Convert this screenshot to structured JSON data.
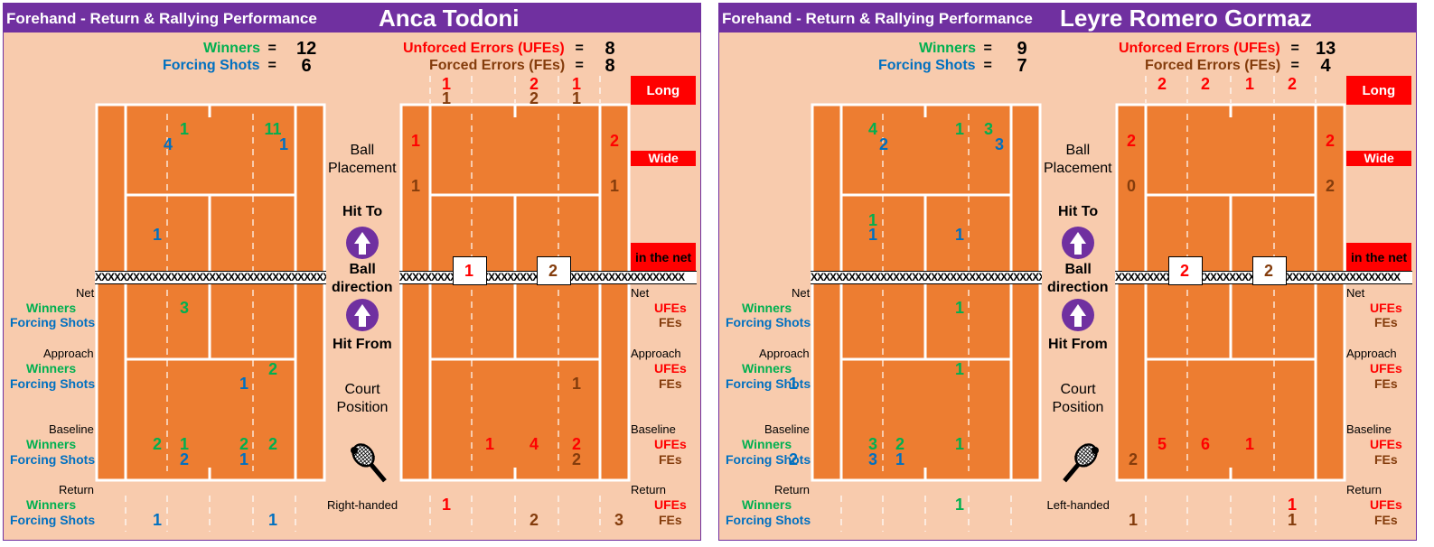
{
  "subtitle": "Forehand - Return & Rallying Performance",
  "labels": {
    "winners": "Winners",
    "forcing_shots": "Forcing Shots",
    "ufes_full": "Unforced Errors (UFEs)",
    "fes_full": "Forced Errors (FEs)",
    "equals": "=",
    "long": "Long",
    "wide": "Wide",
    "in_the_net": "in the net",
    "ball": "Ball",
    "placement": "Placement",
    "hit_to": "Hit To",
    "ball2": "Ball",
    "direction": "direction",
    "hit_from": "Hit From",
    "court": "Court",
    "position": "Position",
    "net": "Net",
    "approach": "Approach",
    "baseline": "Baseline",
    "return": "Return",
    "ufes": "UFEs",
    "fes": "FEs",
    "net_marks": "XXXXXXXXXXXXXXXXXXXXXXXXXXXXXXXXXXXXXXXXXXXXX"
  },
  "colors": {
    "court": "#ed7d31",
    "background": "#f8cbad",
    "header": "#7030a0",
    "winner": "#00b050",
    "forcing": "#0070c0",
    "ufe": "#ff0000",
    "fe": "#843c0c",
    "error_box": "#ff0000"
  },
  "chart_data": [
    {
      "type": "table",
      "player": "Anca Todoni",
      "handedness": "Right-handed",
      "racket_icon": "racket-right-icon",
      "totals": {
        "winners": "12",
        "forcing_shots": "6",
        "ufes": "8",
        "fes": "8"
      },
      "winners": {
        "placement": [
          {
            "col": 2,
            "row": "deep",
            "value": "1"
          },
          {
            "col": 4,
            "row": "deep",
            "value": "11"
          }
        ],
        "net": [
          {
            "col": 2,
            "value": "3"
          }
        ],
        "approach": [
          {
            "col": 4,
            "value": "2"
          }
        ],
        "baseline": [
          {
            "col": 1,
            "value": "2"
          },
          {
            "col": 2,
            "value": "1"
          },
          {
            "col": 3,
            "value": "2"
          },
          {
            "col": 4,
            "value": "2"
          }
        ],
        "return": []
      },
      "forcing_shots": {
        "placement": [
          {
            "col": 1,
            "row": "deep",
            "value": "4"
          },
          {
            "col": 4,
            "row": "deep",
            "value": "1"
          },
          {
            "col": 1,
            "row": "short",
            "value": "1"
          }
        ],
        "net": [],
        "approach": [
          {
            "col": 3,
            "value": "1"
          }
        ],
        "baseline": [
          {
            "col": 2,
            "value": "2"
          },
          {
            "col": 3,
            "value": "1"
          }
        ],
        "return": [
          {
            "col": 1,
            "value": "1"
          },
          {
            "col": 4,
            "value": "1"
          }
        ]
      },
      "ufes": {
        "long": [
          {
            "col": 1,
            "value": "1"
          },
          {
            "col": 3,
            "value": "2"
          },
          {
            "col": 4,
            "value": "1"
          }
        ],
        "wide_left": "1",
        "wide_right": "2",
        "net": [
          {
            "slot": 1,
            "value": "1"
          }
        ],
        "hit_from_approach": [],
        "hit_from_baseline": [
          {
            "col": 2,
            "value": "1"
          },
          {
            "col": 3,
            "value": "4"
          },
          {
            "col": 4,
            "value": "2"
          }
        ],
        "hit_from_return": [
          {
            "col": 1,
            "value": "1"
          }
        ]
      },
      "fes": {
        "long": [
          {
            "col": 1,
            "value": "1"
          },
          {
            "col": 3,
            "value": "2"
          },
          {
            "col": 4,
            "value": "1"
          }
        ],
        "wide_left": "1",
        "wide_right": "1",
        "net": [
          {
            "slot": 2,
            "value": "2"
          }
        ],
        "hit_from_approach": [
          {
            "col": 4,
            "value": "1"
          }
        ],
        "hit_from_baseline": [
          {
            "col": 4,
            "value": "2"
          }
        ],
        "hit_from_return": [
          {
            "col": 3,
            "value": "2"
          },
          {
            "col": 5,
            "value": "3"
          }
        ]
      }
    },
    {
      "type": "table",
      "player": "Leyre Romero Gormaz",
      "handedness": "Left-handed",
      "racket_icon": "racket-left-icon",
      "totals": {
        "winners": "9",
        "forcing_shots": "7",
        "ufes": "13",
        "fes": "4"
      },
      "winners": {
        "placement": [
          {
            "col": 1,
            "row": "deep",
            "value": "4"
          },
          {
            "col": 3,
            "row": "deep",
            "value": "1"
          },
          {
            "col": 4,
            "row": "deep",
            "value": "3"
          },
          {
            "col": 1,
            "row": "short",
            "value": "1"
          }
        ],
        "net": [
          {
            "col": 3,
            "value": "1"
          }
        ],
        "approach": [
          {
            "col": 3,
            "value": "1"
          }
        ],
        "baseline": [
          {
            "col": 1,
            "value": "3"
          },
          {
            "col": 2,
            "value": "2"
          },
          {
            "col": 3,
            "value": "1"
          }
        ],
        "return": [
          {
            "col": 3,
            "value": "1"
          }
        ]
      },
      "forcing_shots": {
        "placement": [
          {
            "col": 1,
            "row": "deep",
            "value": "2"
          },
          {
            "col": 4,
            "row": "deep",
            "value": "3"
          },
          {
            "col": 1,
            "row": "short",
            "value": "1"
          },
          {
            "col": 3,
            "row": "short",
            "value": "1"
          }
        ],
        "net": [],
        "approach": [
          {
            "col": 0,
            "value": "1"
          }
        ],
        "baseline": [
          {
            "col": 0,
            "value": "2"
          },
          {
            "col": 1,
            "value": "3"
          },
          {
            "col": 2,
            "value": "1"
          }
        ],
        "return": []
      },
      "ufes": {
        "long": [
          {
            "col": 1,
            "value": "2"
          },
          {
            "col": 2,
            "value": "2"
          },
          {
            "col": 3,
            "value": "1"
          },
          {
            "col": 4,
            "value": "2"
          }
        ],
        "wide_left": "2",
        "wide_right": "2",
        "net": [
          {
            "slot": 1,
            "value": "2"
          }
        ],
        "hit_from_approach": [],
        "hit_from_baseline": [
          {
            "col": 1,
            "value": "5"
          },
          {
            "col": 2,
            "value": "6"
          },
          {
            "col": 3,
            "value": "1"
          }
        ],
        "hit_from_return": [
          {
            "col": 4,
            "value": "1"
          }
        ]
      },
      "fes": {
        "long": [],
        "wide_left": "0",
        "wide_right": "2",
        "net": [
          {
            "slot": 2,
            "value": "2"
          }
        ],
        "hit_from_approach": [],
        "hit_from_baseline": [
          {
            "col": 0,
            "value": "2"
          }
        ],
        "hit_from_return": [
          {
            "col": 0,
            "value": "1"
          },
          {
            "col": 4,
            "value": "1"
          }
        ]
      }
    }
  ]
}
